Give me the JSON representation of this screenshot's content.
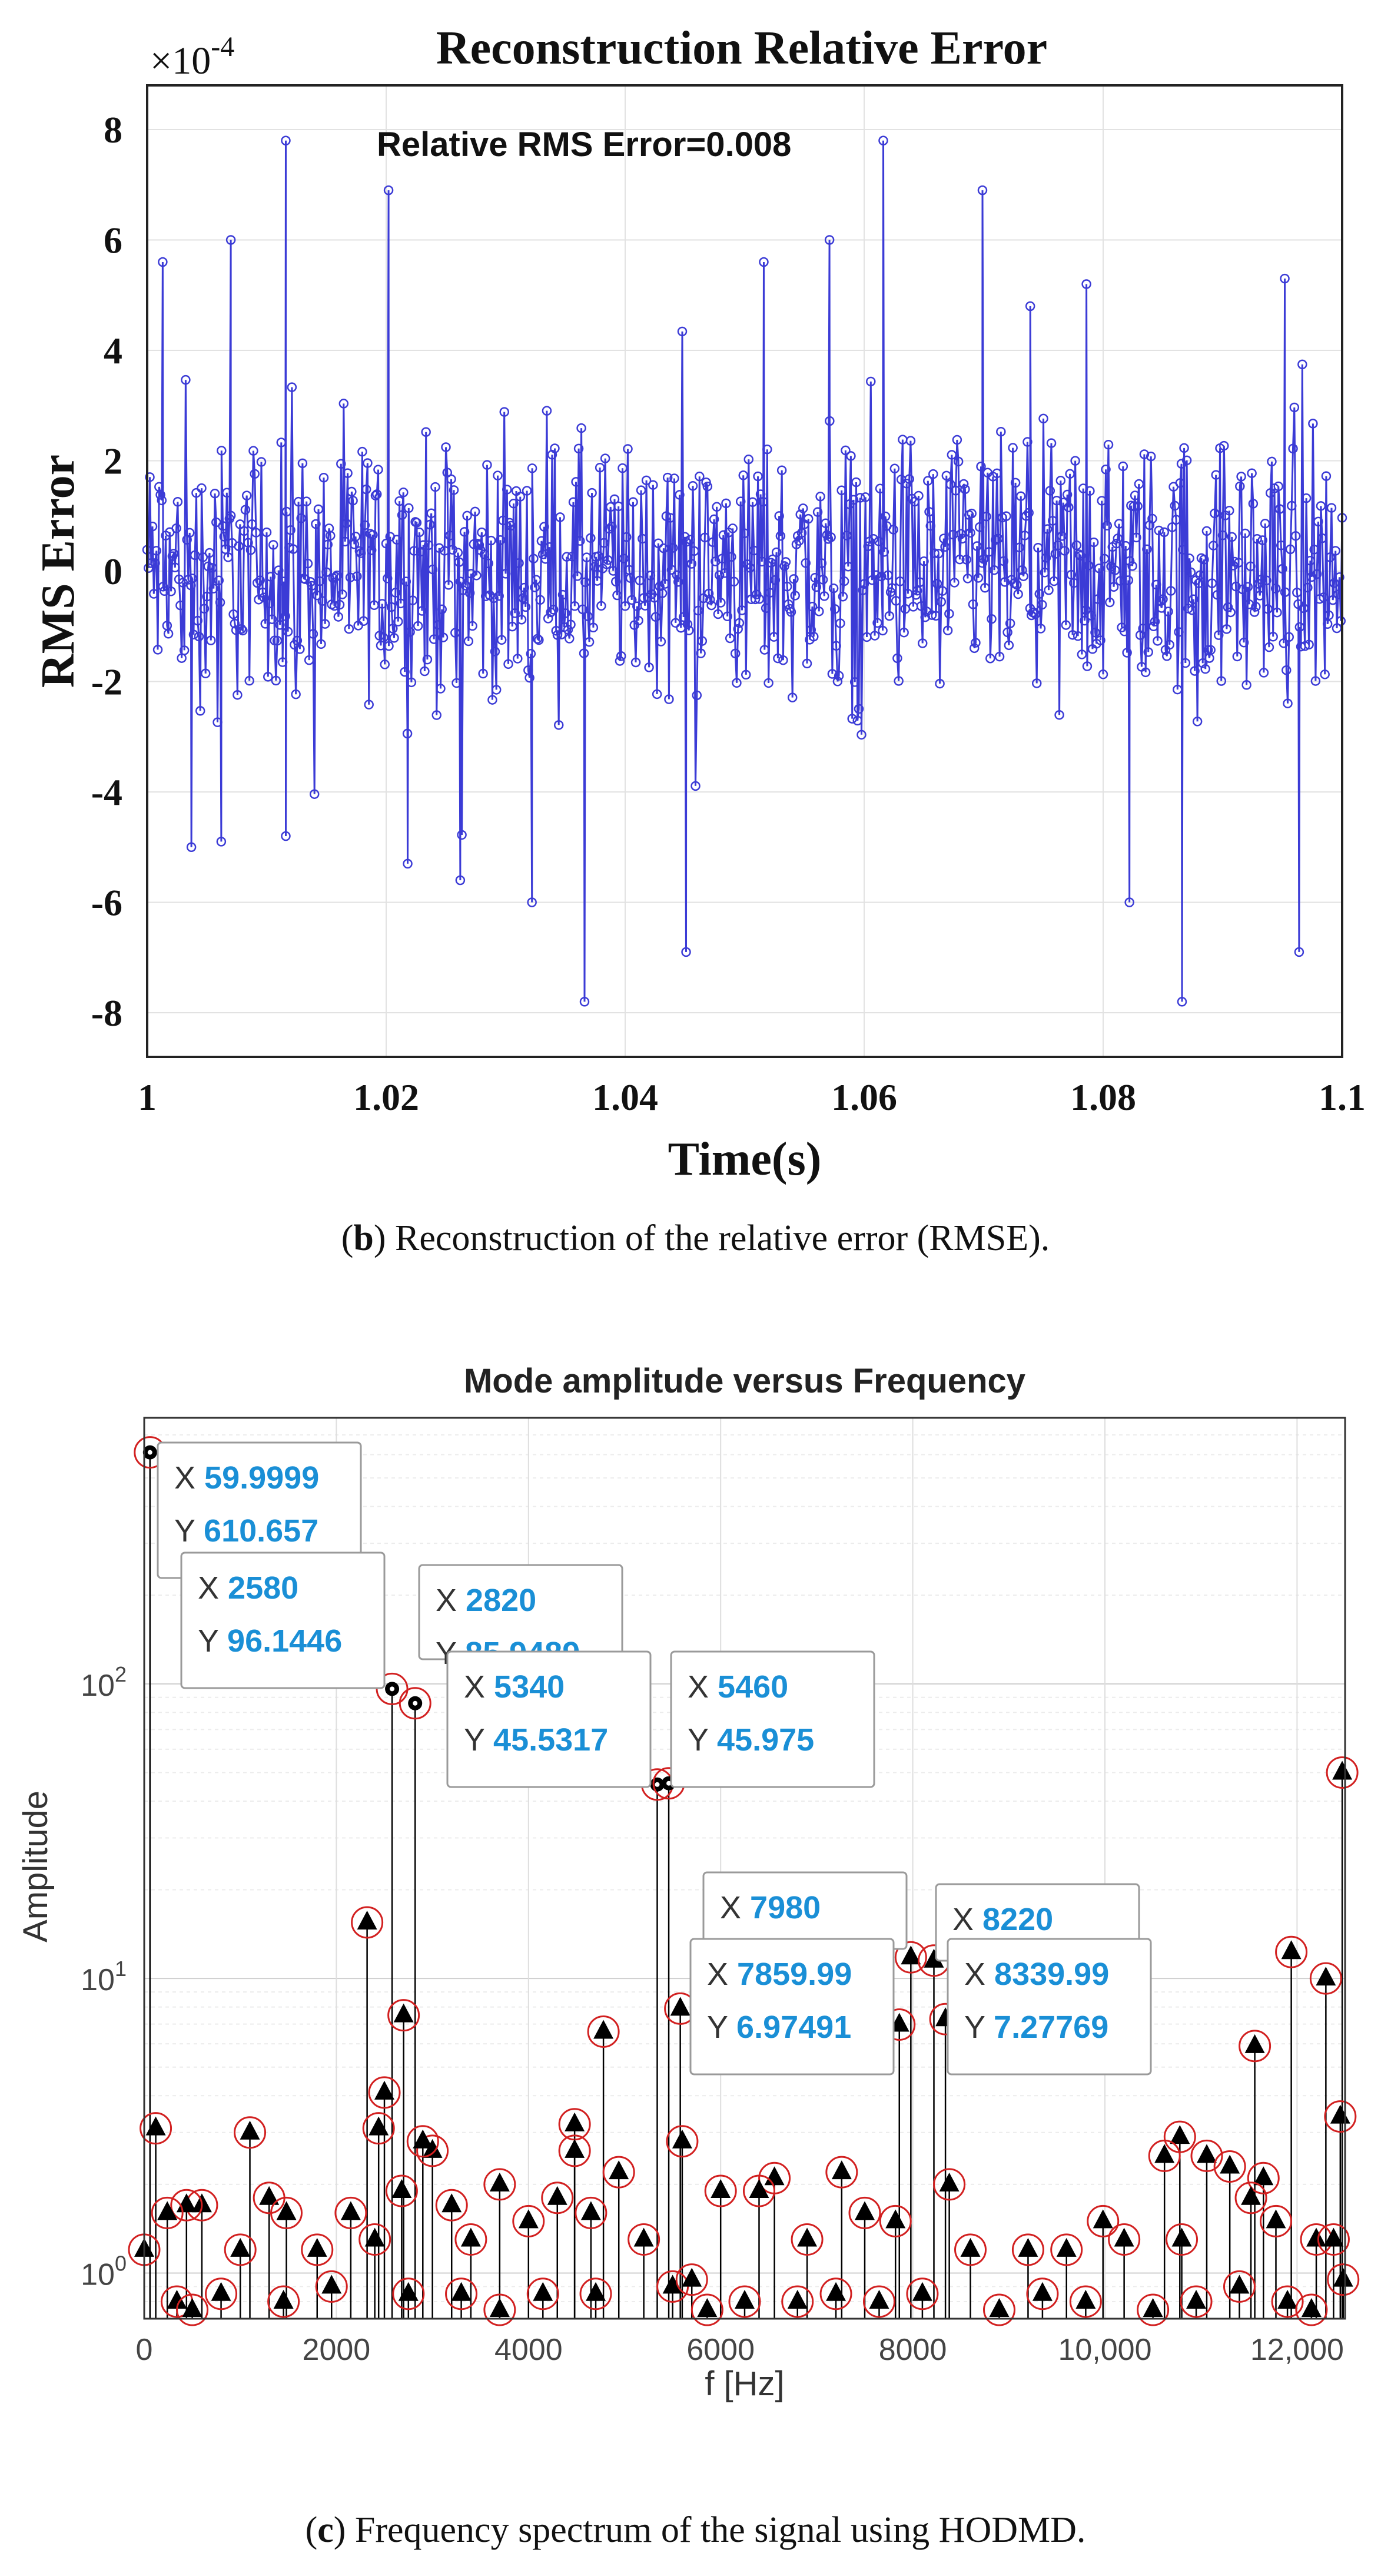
{
  "figure_b": {
    "caption_letter": "b",
    "caption_text": ") Reconstruction of the relative error (RMSE).",
    "caption_open": "(",
    "chart_data": {
      "type": "line",
      "title": "Reconstruction Relative Error",
      "xlabel": "Time(s)",
      "ylabel": "RMS Error",
      "y_exponent_label": "×10",
      "y_exponent_power": "-4",
      "annotation": "Relative RMS Error=0.008",
      "xlim": [
        1.0,
        1.1
      ],
      "ylim": [
        -8.8,
        8.8
      ],
      "xticks": [
        "1",
        "1.02",
        "1.04",
        "1.06",
        "1.08",
        "1.1"
      ],
      "yticks": [
        "8",
        "6",
        "4",
        "2",
        "0",
        "-2",
        "-4",
        "-6",
        "-8"
      ],
      "grid": true,
      "series_color": "#3b3bd6",
      "marker": "circle",
      "peaks": [
        {
          "x": 1.0013,
          "y": 5.6
        },
        {
          "x": 1.0037,
          "y": -5.0
        },
        {
          "x": 1.0062,
          "y": -4.9
        },
        {
          "x": 1.007,
          "y": 6.0
        },
        {
          "x": 1.0116,
          "y": 7.8
        },
        {
          "x": 1.0116,
          "y": -4.8
        },
        {
          "x": 1.0202,
          "y": 6.9
        },
        {
          "x": 1.0218,
          "y": -5.3
        },
        {
          "x": 1.0262,
          "y": -5.6
        },
        {
          "x": 1.0322,
          "y": -6.0
        },
        {
          "x": 1.0366,
          "y": -7.8
        },
        {
          "x": 1.0451,
          "y": -6.9
        },
        {
          "x": 1.0516,
          "y": 5.6
        },
        {
          "x": 1.0571,
          "y": 6.0
        },
        {
          "x": 1.0616,
          "y": 7.8
        },
        {
          "x": 1.0699,
          "y": 6.9
        },
        {
          "x": 1.0739,
          "y": 4.8
        },
        {
          "x": 1.0786,
          "y": 5.2
        },
        {
          "x": 1.0822,
          "y": -6.0
        },
        {
          "x": 1.0866,
          "y": -7.8
        },
        {
          "x": 1.0952,
          "y": 5.3
        },
        {
          "x": 1.0964,
          "y": -6.9
        }
      ]
    }
  },
  "figure_c": {
    "caption_letter": "c",
    "caption_text": ") Frequency spectrum of the signal using HODMD.",
    "caption_open": "(",
    "chart_data": {
      "type": "scatter",
      "title": "Mode amplitude versus Frequency",
      "xlabel": "f [Hz]",
      "ylabel": "Amplitude",
      "xlim": [
        0,
        12500
      ],
      "ylim": [
        0.7,
        800
      ],
      "y_scale": "log",
      "xticks": [
        "0",
        "2000",
        "4000",
        "6000",
        "8000",
        "10,000",
        "12,000"
      ],
      "yticks": [
        {
          "base": "10",
          "exp": "0"
        },
        {
          "base": "10",
          "exp": "1"
        },
        {
          "base": "10",
          "exp": "2"
        }
      ],
      "grid": true,
      "marker_color": "#000000",
      "ring_color": "#d22020",
      "datatip_color": "#1a8fd6",
      "datatips": [
        {
          "x_label": "X",
          "x": "59.9999",
          "y_label": "Y",
          "y": "610.657"
        },
        {
          "x_label": "X",
          "x": "2580",
          "y_label": "Y",
          "y": "96.1446"
        },
        {
          "x_label": "X",
          "x": "2820",
          "y_label": "Y",
          "y": "85.9489"
        },
        {
          "x_label": "X",
          "x": "5340",
          "y_label": "Y",
          "y": "45.5317"
        },
        {
          "x_label": "X",
          "x": "5460",
          "y_label": "Y",
          "y": "45.975"
        },
        {
          "x_label": "X",
          "x": "7980",
          "y_label": "",
          "y": ""
        },
        {
          "x_label": "X",
          "x": "8220",
          "y_label": "",
          "y": ""
        },
        {
          "x_label": "X",
          "x": "7859.99",
          "y_label": "Y",
          "y": "6.97491"
        },
        {
          "x_label": "X",
          "x": "8339.99",
          "y_label": "Y",
          "y": "7.27769"
        }
      ],
      "points": [
        {
          "x": 60,
          "y": 610.657
        },
        {
          "x": 2580,
          "y": 96.1446
        },
        {
          "x": 2820,
          "y": 85.9489
        },
        {
          "x": 5340,
          "y": 45.5317
        },
        {
          "x": 5460,
          "y": 45.975
        },
        {
          "x": 7860,
          "y": 6.97491
        },
        {
          "x": 7980,
          "y": 11.8
        },
        {
          "x": 8220,
          "y": 11.5
        },
        {
          "x": 8340,
          "y": 7.27769
        },
        {
          "x": 12470,
          "y": 50
        },
        {
          "x": 2320,
          "y": 15.5
        },
        {
          "x": 11940,
          "y": 12.3
        },
        {
          "x": 12300,
          "y": 10.0
        },
        {
          "x": 4780,
          "y": 6.6
        },
        {
          "x": 5580,
          "y": 7.9
        },
        {
          "x": 2700,
          "y": 7.5
        },
        {
          "x": 11560,
          "y": 5.9
        },
        {
          "x": 2500,
          "y": 4.1
        },
        {
          "x": 2440,
          "y": 3.1
        },
        {
          "x": 120,
          "y": 3.1
        },
        {
          "x": 1100,
          "y": 3.0
        },
        {
          "x": 12450,
          "y": 3.4
        },
        {
          "x": 4480,
          "y": 3.2
        },
        {
          "x": 4480,
          "y": 2.6
        },
        {
          "x": 3000,
          "y": 2.6
        },
        {
          "x": 2900,
          "y": 2.8
        },
        {
          "x": 5600,
          "y": 2.8
        },
        {
          "x": 10780,
          "y": 2.9
        },
        {
          "x": 10620,
          "y": 2.5
        },
        {
          "x": 11060,
          "y": 2.5
        },
        {
          "x": 11300,
          "y": 2.3
        },
        {
          "x": 7260,
          "y": 2.2
        },
        {
          "x": 4940,
          "y": 2.2
        },
        {
          "x": 6560,
          "y": 2.1
        },
        {
          "x": 3700,
          "y": 2.0
        },
        {
          "x": 6000,
          "y": 1.9
        },
        {
          "x": 6400,
          "y": 1.9
        },
        {
          "x": 8380,
          "y": 2.0
        },
        {
          "x": 11650,
          "y": 2.1
        },
        {
          "x": 11520,
          "y": 1.8
        },
        {
          "x": 4300,
          "y": 1.8
        },
        {
          "x": 1300,
          "y": 1.8
        },
        {
          "x": 1480,
          "y": 1.6
        },
        {
          "x": 600,
          "y": 1.7
        },
        {
          "x": 440,
          "y": 1.7
        },
        {
          "x": 240,
          "y": 1.6
        },
        {
          "x": 2150,
          "y": 1.6
        },
        {
          "x": 2680,
          "y": 1.9
        },
        {
          "x": 3200,
          "y": 1.7
        },
        {
          "x": 4000,
          "y": 1.5
        },
        {
          "x": 4650,
          "y": 1.6
        },
        {
          "x": 7500,
          "y": 1.6
        },
        {
          "x": 7820,
          "y": 1.5
        },
        {
          "x": 9980,
          "y": 1.5
        },
        {
          "x": 10200,
          "y": 1.3
        },
        {
          "x": 11780,
          "y": 1.5
        },
        {
          "x": 0,
          "y": 1.2
        },
        {
          "x": 1000,
          "y": 1.2
        },
        {
          "x": 1800,
          "y": 1.2
        },
        {
          "x": 2400,
          "y": 1.3
        },
        {
          "x": 3400,
          "y": 1.3
        },
        {
          "x": 5200,
          "y": 1.3
        },
        {
          "x": 6900,
          "y": 1.3
        },
        {
          "x": 8600,
          "y": 1.2
        },
        {
          "x": 9200,
          "y": 1.2
        },
        {
          "x": 9600,
          "y": 1.2
        },
        {
          "x": 10800,
          "y": 1.3
        },
        {
          "x": 12200,
          "y": 1.3
        },
        {
          "x": 12380,
          "y": 1.3
        },
        {
          "x": 340,
          "y": 0.8
        },
        {
          "x": 500,
          "y": 0.75
        },
        {
          "x": 800,
          "y": 0.85
        },
        {
          "x": 1450,
          "y": 0.8
        },
        {
          "x": 1950,
          "y": 0.9
        },
        {
          "x": 2750,
          "y": 0.85
        },
        {
          "x": 3300,
          "y": 0.85
        },
        {
          "x": 3700,
          "y": 0.75
        },
        {
          "x": 4150,
          "y": 0.85
        },
        {
          "x": 4700,
          "y": 0.85
        },
        {
          "x": 5500,
          "y": 0.9
        },
        {
          "x": 5700,
          "y": 0.95
        },
        {
          "x": 5860,
          "y": 0.75
        },
        {
          "x": 6250,
          "y": 0.8
        },
        {
          "x": 6800,
          "y": 0.8
        },
        {
          "x": 7200,
          "y": 0.85
        },
        {
          "x": 7650,
          "y": 0.8
        },
        {
          "x": 8100,
          "y": 0.85
        },
        {
          "x": 8900,
          "y": 0.75
        },
        {
          "x": 9350,
          "y": 0.85
        },
        {
          "x": 9800,
          "y": 0.8
        },
        {
          "x": 10500,
          "y": 0.75
        },
        {
          "x": 10950,
          "y": 0.8
        },
        {
          "x": 11400,
          "y": 0.9
        },
        {
          "x": 11900,
          "y": 0.8
        },
        {
          "x": 12150,
          "y": 0.75
        },
        {
          "x": 12480,
          "y": 0.95
        }
      ]
    }
  }
}
